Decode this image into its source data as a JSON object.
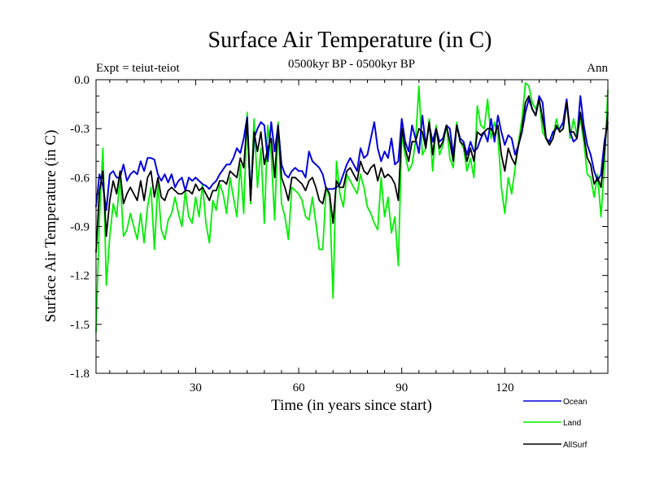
{
  "chart_data": {
    "type": "line",
    "title": "Surface Air Temperature (in C)",
    "subtitle": "0500kyr BP - 0500kyr BP",
    "left_label": "Expt = teiut-teiot",
    "right_label": "Ann",
    "xlabel": "Time (in years since start)",
    "ylabel": "Surface Air Temperature (in C)",
    "xlim": [
      1,
      150
    ],
    "ylim": [
      -1.8,
      0.0
    ],
    "xticks": [
      30,
      60,
      90,
      120
    ],
    "xtick_labels": [
      "30",
      "60",
      "90",
      "120"
    ],
    "yticks": [
      0.0,
      -0.3,
      -0.6,
      -0.9,
      -1.2,
      -1.5,
      -1.8
    ],
    "ytick_labels": [
      "0.0",
      "-0.3",
      "-0.6",
      "-0.9",
      "-1.2",
      "-1.5",
      "-1.8"
    ],
    "grid": false,
    "legend_position": "bottom-right",
    "series": [
      {
        "name": "Ocean",
        "color": "#0000dd",
        "values": [
          -0.78,
          -0.58,
          -0.65,
          -0.8,
          -0.58,
          -0.56,
          -0.6,
          -0.6,
          -0.52,
          -0.62,
          -0.58,
          -0.56,
          -0.58,
          -0.5,
          -0.56,
          -0.48,
          -0.48,
          -0.49,
          -0.58,
          -0.62,
          -0.58,
          -0.63,
          -0.58,
          -0.66,
          -0.62,
          -0.6,
          -0.68,
          -0.6,
          -0.62,
          -0.6,
          -0.62,
          -0.64,
          -0.65,
          -0.67,
          -0.64,
          -0.62,
          -0.58,
          -0.55,
          -0.52,
          -0.52,
          -0.48,
          -0.42,
          -0.45,
          -0.36,
          -0.23,
          -0.72,
          -0.36,
          -0.3,
          -0.26,
          -0.28,
          -0.5,
          -0.26,
          -0.44,
          -0.28,
          -0.52,
          -0.58,
          -0.6,
          -0.56,
          -0.54,
          -0.56,
          -0.56,
          -0.6,
          -0.44,
          -0.5,
          -0.52,
          -0.54,
          -0.58,
          -0.67,
          -0.67,
          -0.67,
          -0.66,
          -0.64,
          -0.58,
          -0.52,
          -0.48,
          -0.52,
          -0.56,
          -0.42,
          -0.48,
          -0.46,
          -0.36,
          -0.26,
          -0.42,
          -0.5,
          -0.44,
          -0.48,
          -0.36,
          -0.52,
          -0.5,
          -0.24,
          -0.38,
          -0.44,
          -0.28,
          -0.36,
          -0.45,
          -0.22,
          -0.4,
          -0.28,
          -0.38,
          -0.3,
          -0.38,
          -0.36,
          -0.28,
          -0.3,
          -0.46,
          -0.28,
          -0.36,
          -0.38,
          -0.46,
          -0.38,
          -0.44,
          -0.42,
          -0.36,
          -0.32,
          -0.38,
          -0.24,
          -0.38,
          -0.22,
          -0.32,
          -0.4,
          -0.34,
          -0.36,
          -0.46,
          -0.4,
          -0.32,
          -0.2,
          -0.12,
          -0.18,
          -0.22,
          -0.1,
          -0.14,
          -0.36,
          -0.38,
          -0.32,
          -0.3,
          -0.3,
          -0.26,
          -0.12,
          -0.32,
          -0.38,
          -0.36,
          -0.1,
          -0.28,
          -0.4,
          -0.46,
          -0.56,
          -0.62,
          -0.58,
          -0.38,
          -0.26
        ]
      },
      {
        "name": "Land",
        "color": "#00ee00",
        "values": [
          -1.55,
          -0.85,
          -0.42,
          -1.26,
          -0.96,
          -0.76,
          -0.84,
          -0.6,
          -0.96,
          -0.92,
          -0.82,
          -0.9,
          -0.98,
          -0.82,
          -1.0,
          -0.78,
          -0.66,
          -1.04,
          -0.64,
          -0.92,
          -0.98,
          -0.86,
          -0.82,
          -0.72,
          -0.82,
          -0.9,
          -0.68,
          -0.84,
          -0.88,
          -0.72,
          -0.84,
          -0.64,
          -0.88,
          -1.0,
          -0.74,
          -0.8,
          -0.64,
          -0.7,
          -0.82,
          -0.6,
          -0.72,
          -0.84,
          -0.52,
          -0.82,
          -0.2,
          -0.76,
          -0.24,
          -0.66,
          -0.42,
          -0.88,
          -0.28,
          -0.46,
          -0.86,
          -0.26,
          -0.76,
          -0.84,
          -0.98,
          -0.66,
          -0.68,
          -0.7,
          -0.74,
          -0.84,
          -0.86,
          -0.72,
          -0.88,
          -1.04,
          -1.04,
          -0.66,
          -0.72,
          -1.34,
          -0.5,
          -0.7,
          -0.78,
          -0.58,
          -0.62,
          -0.66,
          -0.7,
          -0.58,
          -0.66,
          -0.78,
          -0.82,
          -0.88,
          -0.92,
          -0.6,
          -0.84,
          -0.72,
          -0.94,
          -0.84,
          -1.14,
          -0.34,
          -0.46,
          -0.56,
          -0.52,
          -0.38,
          -0.04,
          -0.46,
          -0.42,
          -0.24,
          -0.56,
          -0.28,
          -0.46,
          -0.4,
          -0.28,
          -0.48,
          -0.54,
          -0.26,
          -0.38,
          -0.42,
          -0.56,
          -0.48,
          -0.6,
          -0.16,
          -0.28,
          -0.3,
          -0.12,
          -0.36,
          -0.26,
          -0.34,
          -0.66,
          -0.82,
          -0.6,
          -0.7,
          -0.54,
          -0.38,
          -0.24,
          -0.02,
          -0.04,
          -0.14,
          -0.18,
          -0.12,
          -0.32,
          -0.36,
          -0.4,
          -0.36,
          -0.24,
          -0.32,
          -0.3,
          -0.12,
          -0.36,
          -0.24,
          -0.34,
          -0.24,
          -0.38,
          -0.58,
          -0.6,
          -0.72,
          -0.58,
          -0.84,
          -0.52,
          -0.06
        ]
      },
      {
        "name": "AllSurf",
        "color": "#000000",
        "values": [
          -1.06,
          -0.68,
          -0.56,
          -0.96,
          -0.74,
          -0.62,
          -0.7,
          -0.56,
          -0.76,
          -0.7,
          -0.66,
          -0.7,
          -0.74,
          -0.62,
          -0.74,
          -0.6,
          -0.56,
          -0.72,
          -0.6,
          -0.72,
          -0.74,
          -0.68,
          -0.66,
          -0.68,
          -0.7,
          -0.7,
          -0.68,
          -0.68,
          -0.7,
          -0.64,
          -0.68,
          -0.66,
          -0.7,
          -0.74,
          -0.68,
          -0.68,
          -0.62,
          -0.62,
          -0.64,
          -0.56,
          -0.58,
          -0.6,
          -0.48,
          -0.54,
          -0.24,
          -0.74,
          -0.32,
          -0.44,
          -0.32,
          -0.52,
          -0.42,
          -0.36,
          -0.6,
          -0.28,
          -0.6,
          -0.66,
          -0.74,
          -0.6,
          -0.6,
          -0.62,
          -0.64,
          -0.68,
          -0.62,
          -0.6,
          -0.66,
          -0.74,
          -0.76,
          -0.66,
          -0.7,
          -0.88,
          -0.62,
          -0.66,
          -0.66,
          -0.56,
          -0.54,
          -0.58,
          -0.62,
          -0.5,
          -0.56,
          -0.58,
          -0.54,
          -0.52,
          -0.62,
          -0.54,
          -0.6,
          -0.58,
          -0.6,
          -0.64,
          -0.74,
          -0.3,
          -0.42,
          -0.5,
          -0.38,
          -0.38,
          -0.3,
          -0.32,
          -0.42,
          -0.26,
          -0.46,
          -0.3,
          -0.42,
          -0.38,
          -0.28,
          -0.38,
          -0.5,
          -0.28,
          -0.38,
          -0.4,
          -0.5,
          -0.42,
          -0.5,
          -0.32,
          -0.34,
          -0.32,
          -0.3,
          -0.3,
          -0.34,
          -0.28,
          -0.46,
          -0.56,
          -0.42,
          -0.48,
          -0.52,
          -0.4,
          -0.3,
          -0.14,
          -0.1,
          -0.18,
          -0.22,
          -0.12,
          -0.24,
          -0.36,
          -0.4,
          -0.36,
          -0.28,
          -0.32,
          -0.3,
          -0.14,
          -0.32,
          -0.32,
          -0.36,
          -0.2,
          -0.34,
          -0.48,
          -0.52,
          -0.64,
          -0.6,
          -0.66,
          -0.44,
          -0.2
        ]
      }
    ]
  }
}
